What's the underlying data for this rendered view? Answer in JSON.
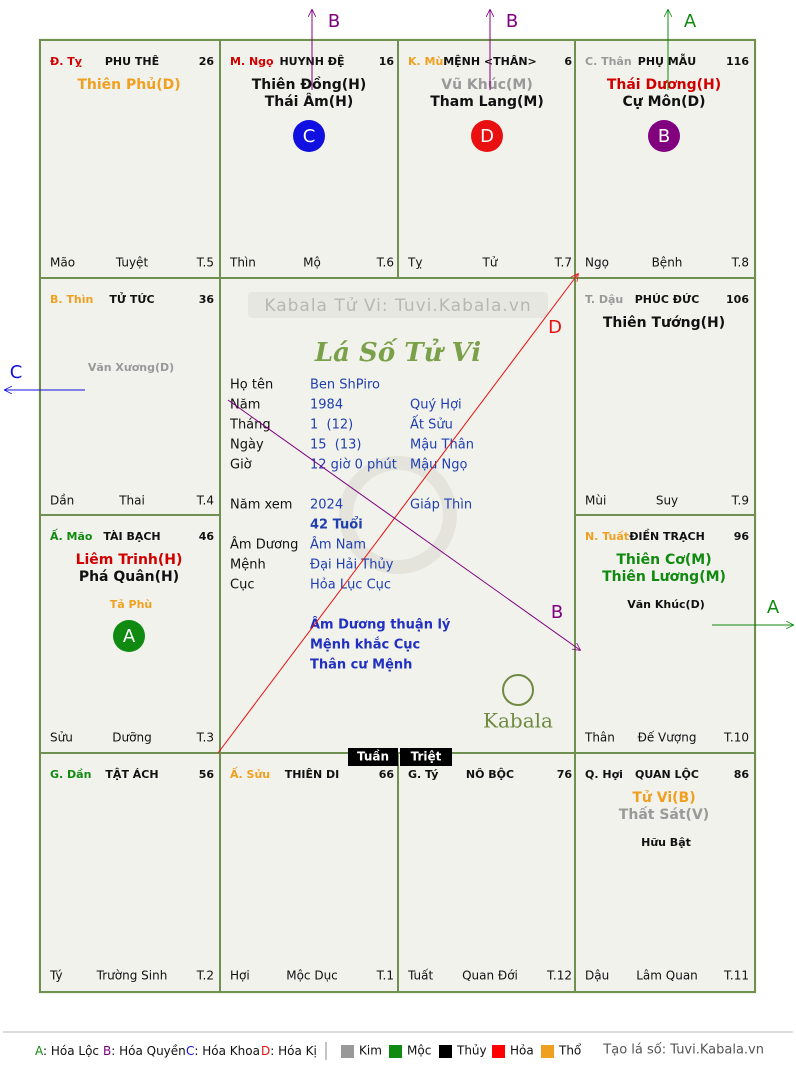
{
  "watermark": "Kabala Tử Vi: Tuvi.Kabala.vn",
  "title": "Lá Số Tử Vi",
  "logo": "Kabala",
  "palaces": [
    {
      "can": "Đ. Tỵ",
      "can_color": "#d00000",
      "name": "PHU THÊ",
      "age": 26,
      "major": [
        {
          "text": "Thiên Phủ(D)",
          "color": "#f0a020"
        }
      ],
      "minor": [],
      "hoa": null,
      "branch": "Mão",
      "stage": "Tuyệt",
      "month": "T.5"
    },
    {
      "can": "M. Ngọ",
      "can_color": "#d00000",
      "name": "HUYNH ĐỆ",
      "age": 16,
      "major": [
        {
          "text": "Thiên Đồng(H)",
          "color": "#111111"
        },
        {
          "text": "Thái Âm(H)",
          "color": "#111111"
        }
      ],
      "minor": [],
      "hoa": {
        "label": "C",
        "color": "#1010e0"
      },
      "branch": "Thìn",
      "stage": "Mộ",
      "month": "T.6"
    },
    {
      "can": "K. Mùi",
      "can_color": "#f0a020",
      "name": "MỆNH <THÂN>",
      "age": 6,
      "major": [
        {
          "text": "Vũ Khúc(M)",
          "color": "#999999"
        },
        {
          "text": "Tham Lang(M)",
          "color": "#111111"
        }
      ],
      "minor": [],
      "hoa": {
        "label": "D",
        "color": "#e81010"
      },
      "branch": "Tỵ",
      "stage": "Tử",
      "month": "T.7"
    },
    {
      "can": "C. Thân",
      "can_color": "#999999",
      "name": "PHỤ MẪU",
      "age": 116,
      "major": [
        {
          "text": "Thái Dương(H)",
          "color": "#d00000"
        },
        {
          "text": "Cự Môn(D)",
          "color": "#111111"
        }
      ],
      "minor": [],
      "hoa": {
        "label": "B",
        "color": "#800080"
      },
      "branch": "Ngọ",
      "stage": "Bệnh",
      "month": "T.8"
    },
    {
      "can": "B. Thìn",
      "can_color": "#f0a020",
      "name": "TỬ TỨC",
      "age": 36,
      "major": [],
      "minor": [
        {
          "text": "Văn Xương(D)",
          "color": "#999999"
        }
      ],
      "hoa": null,
      "branch": "Dần",
      "stage": "Thai",
      "month": "T.4"
    },
    {
      "can": "T. Dậu",
      "can_color": "#999999",
      "name": "PHÚC ĐỨC",
      "age": 106,
      "major": [
        {
          "text": "Thiên Tướng(H)",
          "color": "#111111"
        }
      ],
      "minor": [],
      "hoa": null,
      "branch": "Mùi",
      "stage": "Suy",
      "month": "T.9"
    },
    {
      "can": "Ấ. Mão",
      "can_color": "#108a10",
      "name": "TÀI BẠCH",
      "age": 46,
      "major": [
        {
          "text": "Liêm Trinh(H)",
          "color": "#d00000"
        },
        {
          "text": "Phá Quân(H)",
          "color": "#111111"
        }
      ],
      "minor": [
        {
          "text": "Tả Phù",
          "color": "#f0a020"
        }
      ],
      "hoa": {
        "label": "A",
        "color": "#108a10"
      },
      "branch": "Sửu",
      "stage": "Dưỡng",
      "month": "T.3"
    },
    {
      "can": "N. Tuất",
      "can_color": "#f0a020",
      "name": "ĐIỀN TRẠCH",
      "age": 96,
      "major": [
        {
          "text": "Thiên Cơ(M)",
          "color": "#108a10"
        },
        {
          "text": "Thiên Lương(M)",
          "color": "#108a10"
        }
      ],
      "minor": [
        {
          "text": "Văn Khúc(D)",
          "color": "#111111"
        }
      ],
      "hoa": null,
      "branch": "Thân",
      "stage": "Đế Vượng",
      "month": "T.10"
    },
    {
      "can": "G. Dần",
      "can_color": "#108a10",
      "name": "TẬT ÁCH",
      "age": 56,
      "major": [],
      "minor": [],
      "hoa": null,
      "branch": "Tý",
      "stage": "Trường Sinh",
      "month": "T.2"
    },
    {
      "can": "Ấ. Sửu",
      "can_color": "#f0a020",
      "name": "THIÊN DI",
      "age": 66,
      "major": [],
      "minor": [],
      "hoa": null,
      "branch": "Hợi",
      "stage": "Mộc Dục",
      "month": "T.1"
    },
    {
      "can": "G. Tý",
      "can_color": "#111111",
      "name": "NÔ BỘC",
      "age": 76,
      "major": [],
      "minor": [],
      "hoa": null,
      "branch": "Tuất",
      "stage": "Quan Đới",
      "month": "T.12"
    },
    {
      "can": "Q. Hợi",
      "can_color": "#111111",
      "name": "QUAN LỘC",
      "age": 86,
      "major": [
        {
          "text": "Tử Vi(B)",
          "color": "#f0a020"
        },
        {
          "text": "Thất Sát(V)",
          "color": "#999999"
        }
      ],
      "minor": [
        {
          "text": "Hữu Bật",
          "color": "#111111"
        }
      ],
      "hoa": null,
      "branch": "Dậu",
      "stage": "Lâm Quan",
      "month": "T.11"
    }
  ],
  "info": [
    [
      "Họ tên",
      "Ben ShPiro"
    ],
    [
      "Năm",
      "1984",
      "Quý Hợi"
    ],
    [
      "Tháng",
      "1  (12)",
      "Ất Sửu"
    ],
    [
      "Ngày",
      "15  (13)",
      "Mậu Thân"
    ],
    [
      "Giờ",
      "12 giờ 0 phút",
      "Mậu Ngọ"
    ],
    [
      "Năm xem",
      "2024",
      "Giáp Thìn"
    ],
    [
      "",
      "42 Tuổi"
    ],
    [
      "Âm Dương",
      "Âm Nam"
    ],
    [
      "Mệnh",
      "Đại Hải Thủy"
    ],
    [
      "Cục",
      "Hỏa Lục Cục"
    ]
  ],
  "notes": [
    "Âm Dương thuận lý",
    "Mệnh khắc Cục",
    "Thân cư Mệnh"
  ],
  "tuan": "Tuần",
  "triet": "Triệt",
  "outer_arrows": [
    {
      "label": "B",
      "color": "#800080"
    },
    {
      "label": "B",
      "color": "#800080"
    },
    {
      "label": "A",
      "color": "#108a10"
    },
    {
      "label": "C",
      "color": "#1010e0"
    },
    {
      "label": "A",
      "color": "#108a10"
    }
  ],
  "inner_arrows": [
    {
      "label": "D",
      "color": "#e81010"
    },
    {
      "label": "B",
      "color": "#800080"
    }
  ],
  "legend_hoa": [
    {
      "key": "A",
      "text": ": Hóa Lộc",
      "color": "#108a10"
    },
    {
      "key": "B",
      "text": ": Hóa Quyền",
      "color": "#800080"
    },
    {
      "key": "C",
      "text": ": Hóa Khoa",
      "color": "#1010e0"
    },
    {
      "key": "D",
      "text": ": Hóa Kị",
      "color": "#e81010"
    }
  ],
  "legend_elements": [
    {
      "text": "Kim",
      "color": "#999999"
    },
    {
      "text": "Mộc",
      "color": "#108a10"
    },
    {
      "text": "Thủy",
      "color": "#000000"
    },
    {
      "text": "Hỏa",
      "color": "#ff0000"
    },
    {
      "text": "Thổ",
      "color": "#f0a020"
    }
  ],
  "credit": "Tạo lá số: Tuvi.Kabala.vn"
}
